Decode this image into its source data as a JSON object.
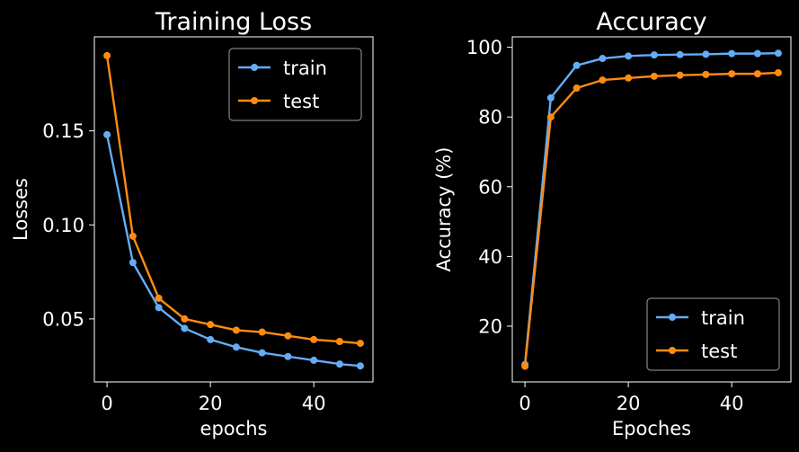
{
  "chart_data": [
    {
      "type": "line",
      "title": "Training Loss",
      "xlabel": "epochs",
      "ylabel": "Losses",
      "xlim": [
        -2.45,
        51.45
      ],
      "ylim": [
        0.0165,
        0.2
      ],
      "xticks": [
        0,
        20,
        40
      ],
      "xtick_labels": [
        "0",
        "20",
        "40"
      ],
      "yticks": [
        0.05,
        0.1,
        0.15
      ],
      "ytick_labels": [
        "0.05",
        "0.10",
        "0.15"
      ],
      "grid": false,
      "legend": "top-right",
      "x": [
        0,
        5,
        10,
        15,
        20,
        25,
        30,
        35,
        40,
        45,
        49
      ],
      "series": [
        {
          "name": "train",
          "color": "#63adf7",
          "values": [
            0.148,
            0.08,
            0.056,
            0.045,
            0.039,
            0.035,
            0.032,
            0.03,
            0.028,
            0.026,
            0.025
          ]
        },
        {
          "name": "test",
          "color": "#ff8c12",
          "values": [
            0.19,
            0.094,
            0.061,
            0.05,
            0.047,
            0.044,
            0.043,
            0.041,
            0.039,
            0.038,
            0.037
          ]
        }
      ]
    },
    {
      "type": "line",
      "title": "Accuracy",
      "xlabel": "Epoches",
      "ylabel": "Accuracy (%)",
      "xlim": [
        -2.45,
        51.45
      ],
      "ylim": [
        4.0,
        103.0
      ],
      "xticks": [
        0,
        20,
        40
      ],
      "xtick_labels": [
        "0",
        "20",
        "40"
      ],
      "yticks": [
        20,
        40,
        60,
        80,
        100
      ],
      "ytick_labels": [
        "20",
        "40",
        "60",
        "80",
        "100"
      ],
      "grid": false,
      "legend": "bottom-right",
      "x": [
        0,
        5,
        10,
        15,
        20,
        25,
        30,
        35,
        40,
        45,
        49
      ],
      "series": [
        {
          "name": "train",
          "color": "#63adf7",
          "values": [
            9.0,
            85.5,
            94.8,
            96.8,
            97.5,
            97.8,
            97.9,
            98.0,
            98.2,
            98.2,
            98.3
          ]
        },
        {
          "name": "test",
          "color": "#ff8c12",
          "values": [
            8.5,
            80.0,
            88.3,
            90.6,
            91.2,
            91.7,
            92.0,
            92.2,
            92.4,
            92.4,
            92.7
          ]
        }
      ]
    }
  ]
}
